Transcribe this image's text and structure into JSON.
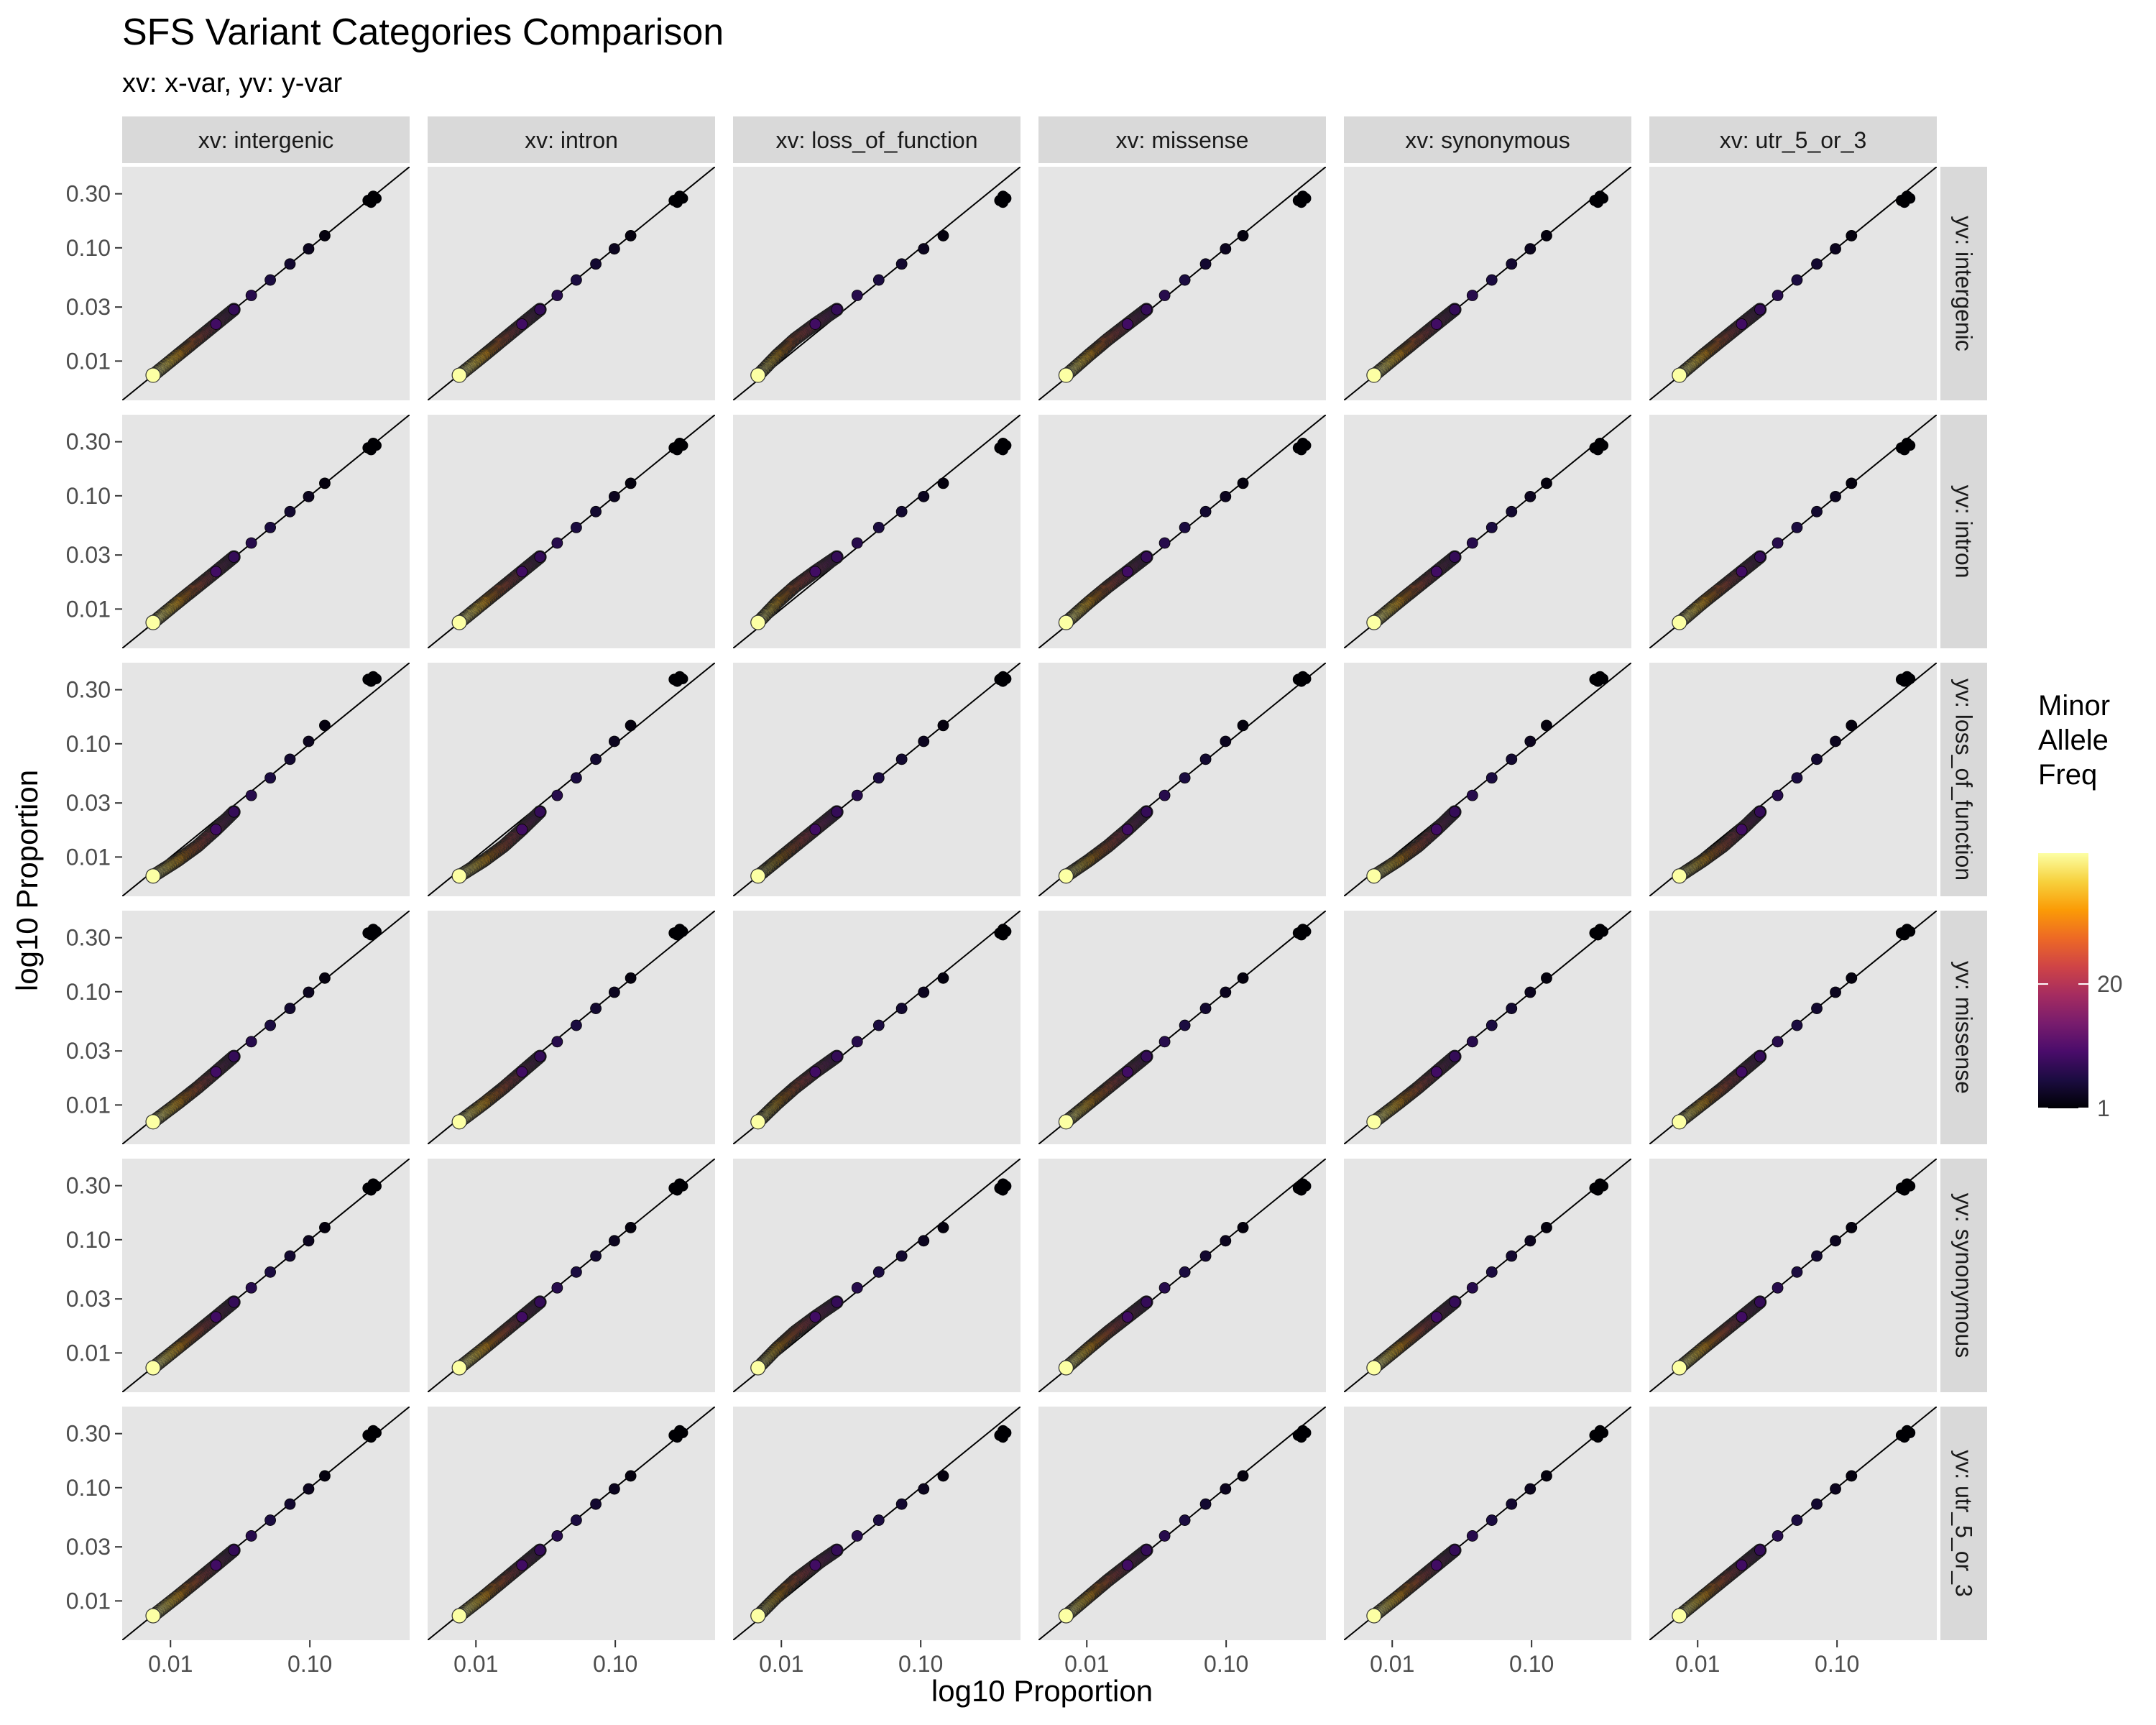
{
  "chart_data": {
    "type": "scatter",
    "title": "SFS Variant Categories Comparison",
    "subtitle": "xv: x-var, yv: y-var",
    "xlabel": "log10  Proportion",
    "ylabel": "log10  Proportion",
    "x_scale": "log10",
    "y_scale": "log10",
    "x_ticks": [
      0.01,
      0.1
    ],
    "x_tick_labels": [
      "0.01",
      "0.10"
    ],
    "y_ticks": [
      0.01,
      0.03,
      0.1,
      0.3
    ],
    "y_tick_labels": [
      "0.01",
      "0.03",
      "0.10",
      "0.30"
    ],
    "xlim": [
      0.0045,
      0.52
    ],
    "ylim": [
      0.0045,
      0.52
    ],
    "grid": false,
    "reference_line": "y = x",
    "categories": [
      "intergenic",
      "intron",
      "loss_of_function",
      "missense",
      "synonymous",
      "utr_5_or_3"
    ],
    "col_facet_labels": [
      "xv: intergenic",
      "xv: intron",
      "xv: loss_of_function",
      "xv: missense",
      "xv: synonymous",
      "xv: utr_5_or_3"
    ],
    "row_facet_labels": [
      "yv: intergenic",
      "yv: intron",
      "yv: loss_of_function",
      "yv: missense",
      "yv: synonymous",
      "yv: utr_5_or_3"
    ],
    "series": [
      {
        "name": "intergenic",
        "proportion": [
          0.0075,
          0.0112,
          0.0156,
          0.0212,
          0.0285,
          0.038,
          0.052,
          0.072,
          0.098,
          0.128,
          0.262,
          0.285
        ]
      },
      {
        "name": "intron",
        "proportion": [
          0.0076,
          0.0114,
          0.0158,
          0.0214,
          0.0288,
          0.0383,
          0.0525,
          0.0725,
          0.0985,
          0.129,
          0.265,
          0.29
        ]
      },
      {
        "name": "loss_of_function",
        "proportion": [
          0.0068,
          0.0093,
          0.0125,
          0.0175,
          0.025,
          0.035,
          0.05,
          0.073,
          0.105,
          0.145,
          0.37,
          0.39
        ]
      },
      {
        "name": "missense",
        "proportion": [
          0.0071,
          0.0103,
          0.0142,
          0.0196,
          0.0268,
          0.0362,
          0.0505,
          0.0712,
          0.099,
          0.132,
          0.33,
          0.355
        ]
      },
      {
        "name": "synonymous",
        "proportion": [
          0.0074,
          0.011,
          0.0153,
          0.0208,
          0.0281,
          0.0376,
          0.0518,
          0.0718,
          0.0978,
          0.128,
          0.285,
          0.31
        ]
      },
      {
        "name": "utr_5_or_3",
        "proportion": [
          0.0074,
          0.0109,
          0.0152,
          0.0207,
          0.028,
          0.0375,
          0.0516,
          0.0716,
          0.0975,
          0.127,
          0.29,
          0.318
        ]
      }
    ],
    "legend": {
      "title_lines": [
        "Minor",
        "Allele",
        "Freq"
      ],
      "placement": "right",
      "tick_values": [
        1,
        20
      ],
      "tick_labels": [
        "1",
        "20"
      ],
      "range": [
        1,
        40
      ],
      "palette": [
        "#000004",
        "#1b0c41",
        "#4a0c6b",
        "#781c6d",
        "#a52c60",
        "#cf4446",
        "#ed6925",
        "#fb9b06",
        "#f7d13d",
        "#fcffa4"
      ]
    },
    "panel_background": "#e5e5e5",
    "strip_background": "#d9d9d9"
  }
}
